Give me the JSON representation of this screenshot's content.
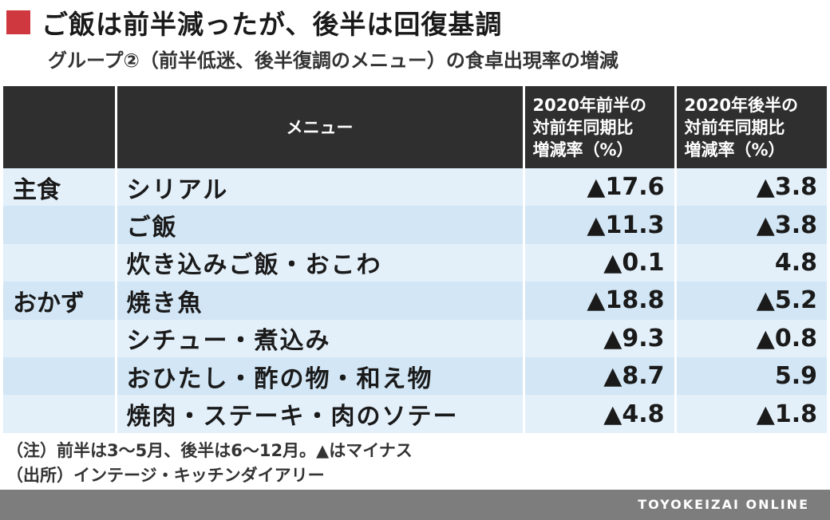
{
  "title": "ご飯は前半減ったが、後半は回復基調",
  "subtitle": "グループ②（前半低迷、後半復調のメニュー）の食卓出現率の増減",
  "colors": {
    "title_mark": "#d0383f",
    "header_bg": "#2f2f2f",
    "row_light": "#e3f0fa",
    "row_dark": "#d2e6f5",
    "footer_bg": "#7d7d7d"
  },
  "chart_data": {
    "type": "table",
    "columns": [
      "",
      "メニュー",
      "2020年前半の対前年同期比増減率（%）",
      "2020年後半の対前年同期比増減率（%）"
    ],
    "header": {
      "col0": "",
      "menu": "メニュー",
      "first_half": {
        "line1": "2020年前半の",
        "line2": "対前年同期比",
        "line3": "増減率（%）"
      },
      "second_half": {
        "line1": "2020年後半の",
        "line2": "対前年同期比",
        "line3": "増減率（%）"
      }
    },
    "rows": [
      {
        "category": "主食",
        "menu": "シリアル",
        "first_half": "▲17.6",
        "second_half": "▲3.8",
        "first_half_value": -17.6,
        "second_half_value": -3.8
      },
      {
        "category": "",
        "menu": "ご飯",
        "first_half": "▲11.3",
        "second_half": "▲3.8",
        "first_half_value": -11.3,
        "second_half_value": -3.8
      },
      {
        "category": "",
        "menu": "炊き込みご飯・おこわ",
        "first_half": "▲0.1",
        "second_half": "4.8",
        "first_half_value": -0.1,
        "second_half_value": 4.8
      },
      {
        "category": "おかず",
        "menu": "焼き魚",
        "first_half": "▲18.8",
        "second_half": "▲5.2",
        "first_half_value": -18.8,
        "second_half_value": -5.2
      },
      {
        "category": "",
        "menu": "シチュー・煮込み",
        "first_half": "▲9.3",
        "second_half": "▲0.8",
        "first_half_value": -9.3,
        "second_half_value": -0.8
      },
      {
        "category": "",
        "menu": "おひたし・酢の物・和え物",
        "first_half": "▲8.7",
        "second_half": "5.9",
        "first_half_value": -8.7,
        "second_half_value": 5.9
      },
      {
        "category": "",
        "menu": "焼肉・ステーキ・肉のソテー",
        "first_half": "▲4.8",
        "second_half": "▲1.8",
        "first_half_value": -4.8,
        "second_half_value": -1.8
      }
    ]
  },
  "notes": {
    "note1": "（注）前半は3～5月、後半は6～12月。▲はマイナス",
    "note2": "（出所）インテージ・キッチンダイアリー"
  },
  "footer": {
    "brand": "TOYOKEIZAI ONLINE"
  }
}
